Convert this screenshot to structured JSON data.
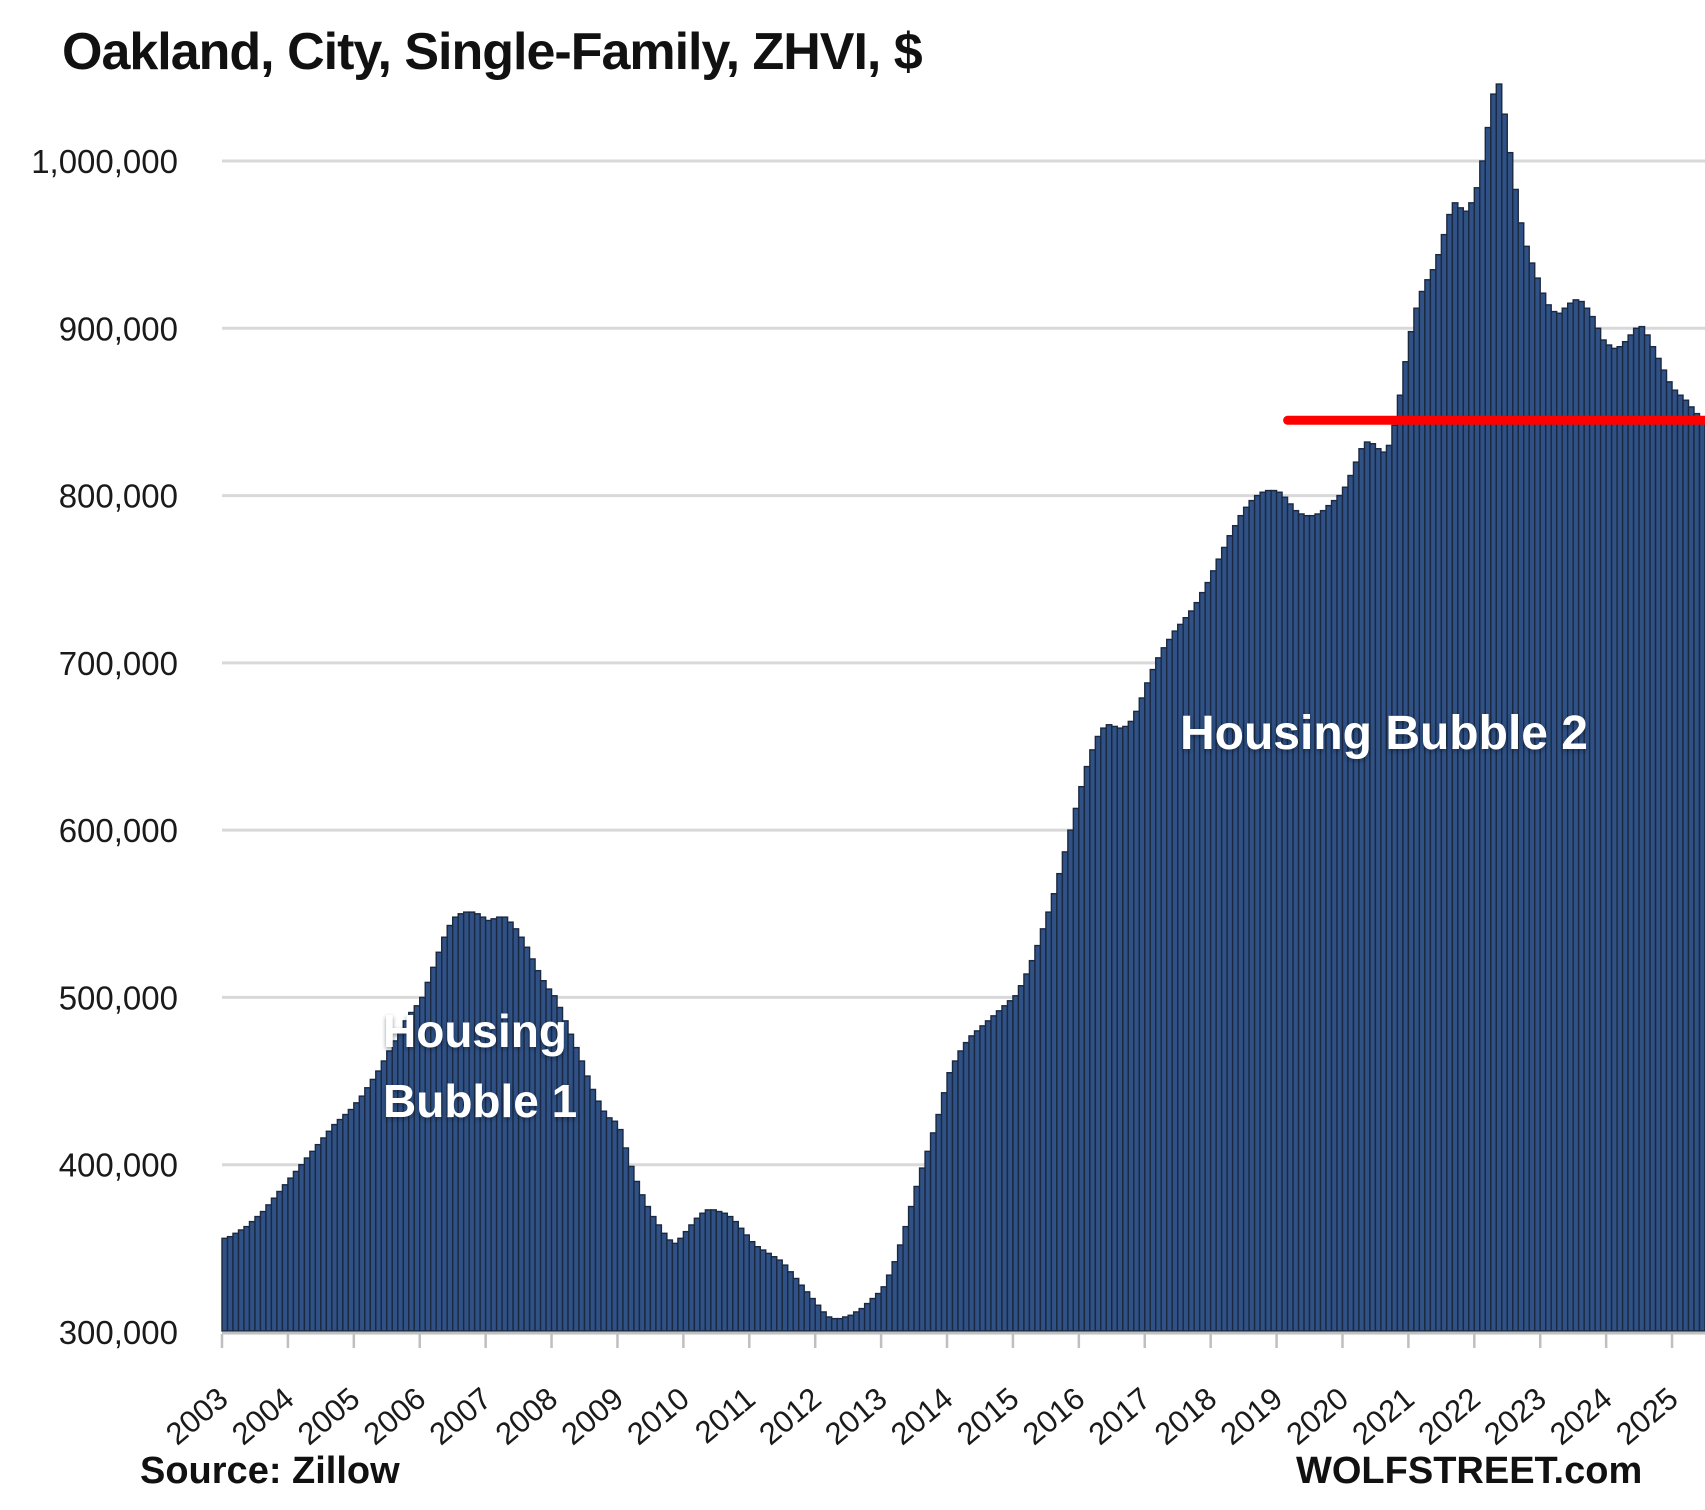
{
  "title": "Oakland, City, Single-Family, ZHVI, $",
  "source_note": "Source: Zillow",
  "watermark": "WOLFSTREET.com",
  "annotations": {
    "bubble1_line1": "Housing",
    "bubble1_line2": "Bubble 1",
    "bubble2": "Housing Bubble 2"
  },
  "colors": {
    "bar_fill": "#2f5185",
    "bar_stroke": "#1b2940",
    "red_line": "#ff0000",
    "gridline": "#d9d9d9",
    "axis_line": "#bfbfbf",
    "tick_text": "#1a1a1a"
  },
  "y_axis": {
    "min": 300000,
    "max": 1000000,
    "tick_values": [
      1000000,
      900000,
      800000,
      700000,
      600000,
      500000,
      400000,
      300000
    ],
    "tick_labels": [
      "1,000,000",
      "900,000",
      "800,000",
      "700,000",
      "600,000",
      "500,000",
      "400,000",
      "300,000"
    ]
  },
  "x_axis": {
    "years": [
      "2003",
      "2004",
      "2005",
      "2006",
      "2007",
      "2008",
      "2009",
      "2010",
      "2011",
      "2012",
      "2013",
      "2014",
      "2015",
      "2016",
      "2017",
      "2018",
      "2019",
      "2020",
      "2021",
      "2022",
      "2023",
      "2024",
      "2025"
    ]
  },
  "red_line": {
    "value": 845000,
    "start_month": "2019-03",
    "extends_to_right_edge": true
  },
  "chart_data": {
    "type": "bar",
    "title": "Oakland, City, Single-Family, ZHVI, $",
    "ylabel": "ZHVI, $",
    "xlabel": "",
    "unit": "USD",
    "frequency": "monthly",
    "start": "2003-01",
    "end": "2025-06",
    "ylim": [
      300000,
      1050000
    ],
    "grid": true,
    "values": [
      356000,
      357000,
      359000,
      361000,
      363000,
      366000,
      369000,
      372000,
      376000,
      380000,
      384000,
      388000,
      392000,
      396000,
      400000,
      404000,
      408000,
      412000,
      416000,
      420000,
      424000,
      427000,
      430000,
      433000,
      437000,
      441000,
      446000,
      451000,
      456000,
      462000,
      468000,
      474000,
      480000,
      486000,
      491000,
      495000,
      500000,
      509000,
      518000,
      527000,
      536000,
      543000,
      548000,
      550000,
      551000,
      551000,
      550000,
      548000,
      546000,
      547000,
      548000,
      548000,
      545000,
      541000,
      536000,
      530000,
      523000,
      516000,
      510000,
      505000,
      501000,
      494000,
      486000,
      478000,
      470000,
      462000,
      453000,
      445000,
      438000,
      432000,
      428000,
      426000,
      421000,
      410000,
      399000,
      390000,
      382000,
      375000,
      369000,
      364000,
      359000,
      355000,
      353000,
      356000,
      360000,
      364000,
      368000,
      371000,
      373000,
      373000,
      372000,
      371000,
      369000,
      366000,
      362000,
      358000,
      354000,
      351000,
      349000,
      347000,
      345000,
      343000,
      340000,
      336000,
      332000,
      328000,
      324000,
      320000,
      316000,
      312000,
      309000,
      308000,
      308000,
      309000,
      310000,
      312000,
      314000,
      317000,
      320000,
      323000,
      327000,
      334000,
      342000,
      352000,
      363000,
      375000,
      387000,
      398000,
      408000,
      419000,
      430000,
      443000,
      455000,
      462000,
      468000,
      473000,
      477000,
      480000,
      483000,
      486000,
      489000,
      492000,
      495000,
      498000,
      501000,
      507000,
      514000,
      522000,
      531000,
      541000,
      551000,
      562000,
      574000,
      587000,
      600000,
      613000,
      626000,
      638000,
      648000,
      656000,
      661000,
      663000,
      662000,
      661000,
      662000,
      665000,
      671000,
      679000,
      688000,
      696000,
      703000,
      709000,
      714000,
      719000,
      723000,
      727000,
      731000,
      736000,
      742000,
      748000,
      755000,
      762000,
      769000,
      776000,
      782000,
      788000,
      793000,
      797000,
      800000,
      802000,
      803000,
      803000,
      802000,
      799000,
      795000,
      791000,
      789000,
      788000,
      788000,
      789000,
      791000,
      794000,
      797000,
      800000,
      805000,
      812000,
      820000,
      828000,
      832000,
      831000,
      828000,
      826000,
      830000,
      842000,
      860000,
      880000,
      898000,
      912000,
      922000,
      929000,
      935000,
      944000,
      956000,
      968000,
      975000,
      972000,
      970000,
      975000,
      984000,
      1000000,
      1020000,
      1040000,
      1046000,
      1028000,
      1005000,
      983000,
      963000,
      949000,
      939000,
      930000,
      921000,
      914000,
      910000,
      909000,
      912000,
      915000,
      917000,
      916000,
      912000,
      907000,
      900000,
      893000,
      890000,
      888000,
      889000,
      892000,
      896000,
      900000,
      901000,
      896000,
      889000,
      882000,
      875000,
      868000,
      863000,
      860000,
      857000,
      853000,
      849000,
      845000
    ]
  }
}
